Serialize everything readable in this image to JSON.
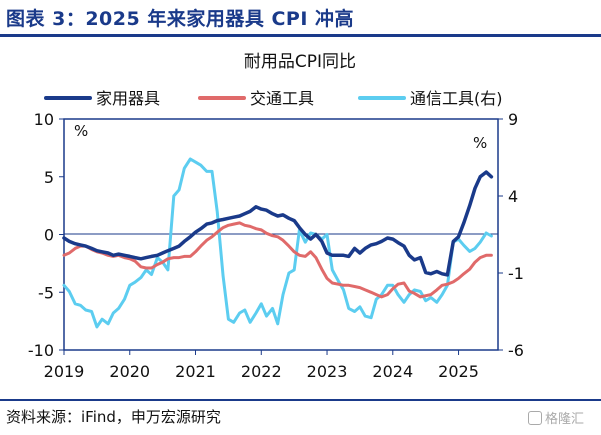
{
  "header": {
    "title": "图表 3：2025 年来家用器具 CPI 冲高"
  },
  "footer": {
    "source": "资料来源：iFind，申万宏源研究",
    "watermark": "格隆汇"
  },
  "colors": {
    "navy": "#1a3a8a",
    "red": "#e06a6a",
    "cyan": "#5ccdf0"
  },
  "chart_data": {
    "type": "line",
    "title": "耐用品CPI同比",
    "left_axis": {
      "unit": "%",
      "ylim": [
        -10,
        10
      ],
      "ticks": [
        "10",
        "5",
        "0",
        "-5",
        "-10"
      ]
    },
    "right_axis": {
      "unit": "%",
      "ylim": [
        -6,
        9
      ],
      "ticks": [
        "9",
        "4",
        "-1",
        "-6"
      ]
    },
    "x_ticks": [
      "2019",
      "2020",
      "2021",
      "2022",
      "2023",
      "2024",
      "2025"
    ],
    "legend": [
      "家用器具",
      "交通工具",
      "通信工具(右)"
    ],
    "series": [
      {
        "name": "家用器具",
        "axis": "left",
        "color": "#1a3a8a",
        "points": [
          [
            2019.0,
            -0.3
          ],
          [
            2019.08,
            -0.6
          ],
          [
            2019.17,
            -0.8
          ],
          [
            2019.25,
            -0.9
          ],
          [
            2019.33,
            -1.0
          ],
          [
            2019.42,
            -1.2
          ],
          [
            2019.5,
            -1.4
          ],
          [
            2019.58,
            -1.5
          ],
          [
            2019.67,
            -1.6
          ],
          [
            2019.75,
            -1.8
          ],
          [
            2019.83,
            -1.7
          ],
          [
            2019.92,
            -1.8
          ],
          [
            2020.0,
            -1.9
          ],
          [
            2020.08,
            -2.0
          ],
          [
            2020.17,
            -2.1
          ],
          [
            2020.25,
            -2.0
          ],
          [
            2020.33,
            -1.9
          ],
          [
            2020.42,
            -1.8
          ],
          [
            2020.5,
            -1.6
          ],
          [
            2020.58,
            -1.4
          ],
          [
            2020.67,
            -1.2
          ],
          [
            2020.75,
            -1.0
          ],
          [
            2020.83,
            -0.6
          ],
          [
            2020.92,
            -0.2
          ],
          [
            2021.0,
            0.2
          ],
          [
            2021.08,
            0.5
          ],
          [
            2021.17,
            0.9
          ],
          [
            2021.25,
            1.0
          ],
          [
            2021.33,
            1.2
          ],
          [
            2021.42,
            1.3
          ],
          [
            2021.5,
            1.4
          ],
          [
            2021.58,
            1.5
          ],
          [
            2021.67,
            1.6
          ],
          [
            2021.75,
            1.8
          ],
          [
            2021.83,
            2.0
          ],
          [
            2021.92,
            2.4
          ],
          [
            2022.0,
            2.2
          ],
          [
            2022.08,
            2.1
          ],
          [
            2022.17,
            1.8
          ],
          [
            2022.25,
            1.6
          ],
          [
            2022.33,
            1.7
          ],
          [
            2022.42,
            1.4
          ],
          [
            2022.5,
            1.2
          ],
          [
            2022.58,
            0.6
          ],
          [
            2022.67,
            0.0
          ],
          [
            2022.75,
            -0.4
          ],
          [
            2022.83,
            0.0
          ],
          [
            2022.92,
            -0.6
          ],
          [
            2023.0,
            -1.6
          ],
          [
            2023.08,
            -1.8
          ],
          [
            2023.17,
            -1.8
          ],
          [
            2023.25,
            -1.8
          ],
          [
            2023.33,
            -1.9
          ],
          [
            2023.42,
            -1.2
          ],
          [
            2023.5,
            -1.6
          ],
          [
            2023.58,
            -1.2
          ],
          [
            2023.67,
            -0.9
          ],
          [
            2023.75,
            -0.8
          ],
          [
            2023.83,
            -0.6
          ],
          [
            2023.92,
            -0.3
          ],
          [
            2024.0,
            -0.4
          ],
          [
            2024.08,
            -0.7
          ],
          [
            2024.17,
            -1.0
          ],
          [
            2024.25,
            -1.8
          ],
          [
            2024.33,
            -2.2
          ],
          [
            2024.42,
            -2.0
          ],
          [
            2024.5,
            -3.3
          ],
          [
            2024.58,
            -3.4
          ],
          [
            2024.67,
            -3.2
          ],
          [
            2024.75,
            -3.4
          ],
          [
            2024.83,
            -3.5
          ],
          [
            2024.92,
            -0.6
          ],
          [
            2025.0,
            -0.2
          ],
          [
            2025.08,
            1.0
          ],
          [
            2025.17,
            2.5
          ],
          [
            2025.25,
            4.0
          ],
          [
            2025.33,
            5.0
          ],
          [
            2025.42,
            5.4
          ],
          [
            2025.5,
            5.0
          ]
        ]
      },
      {
        "name": "交通工具",
        "axis": "left",
        "color": "#e06a6a",
        "points": [
          [
            2019.0,
            -1.8
          ],
          [
            2019.08,
            -1.6
          ],
          [
            2019.17,
            -1.2
          ],
          [
            2019.25,
            -1.0
          ],
          [
            2019.33,
            -1.0
          ],
          [
            2019.42,
            -1.3
          ],
          [
            2019.5,
            -1.5
          ],
          [
            2019.58,
            -1.6
          ],
          [
            2019.67,
            -1.8
          ],
          [
            2019.75,
            -1.9
          ],
          [
            2019.83,
            -1.8
          ],
          [
            2019.92,
            -2.0
          ],
          [
            2020.0,
            -2.1
          ],
          [
            2020.08,
            -2.3
          ],
          [
            2020.17,
            -2.8
          ],
          [
            2020.25,
            -2.9
          ],
          [
            2020.33,
            -2.9
          ],
          [
            2020.42,
            -2.6
          ],
          [
            2020.5,
            -2.4
          ],
          [
            2020.58,
            -2.1
          ],
          [
            2020.67,
            -2.0
          ],
          [
            2020.75,
            -2.0
          ],
          [
            2020.83,
            -1.9
          ],
          [
            2020.92,
            -1.9
          ],
          [
            2021.0,
            -1.5
          ],
          [
            2021.08,
            -1.0
          ],
          [
            2021.17,
            -0.5
          ],
          [
            2021.25,
            -0.2
          ],
          [
            2021.33,
            0.2
          ],
          [
            2021.42,
            0.6
          ],
          [
            2021.5,
            0.8
          ],
          [
            2021.58,
            0.9
          ],
          [
            2021.67,
            1.0
          ],
          [
            2021.75,
            0.8
          ],
          [
            2021.83,
            0.7
          ],
          [
            2021.92,
            0.5
          ],
          [
            2022.0,
            0.4
          ],
          [
            2022.08,
            0.1
          ],
          [
            2022.17,
            -0.1
          ],
          [
            2022.25,
            -0.2
          ],
          [
            2022.33,
            -0.5
          ],
          [
            2022.42,
            -1.0
          ],
          [
            2022.5,
            -1.5
          ],
          [
            2022.58,
            -1.8
          ],
          [
            2022.67,
            -1.9
          ],
          [
            2022.75,
            -1.5
          ],
          [
            2022.83,
            -2.0
          ],
          [
            2022.92,
            -3.0
          ],
          [
            2023.0,
            -3.8
          ],
          [
            2023.08,
            -4.2
          ],
          [
            2023.17,
            -4.3
          ],
          [
            2023.25,
            -4.4
          ],
          [
            2023.33,
            -4.4
          ],
          [
            2023.42,
            -4.5
          ],
          [
            2023.5,
            -4.6
          ],
          [
            2023.58,
            -4.8
          ],
          [
            2023.67,
            -5.0
          ],
          [
            2023.75,
            -5.2
          ],
          [
            2023.83,
            -5.4
          ],
          [
            2023.92,
            -5.2
          ],
          [
            2024.0,
            -4.7
          ],
          [
            2024.08,
            -4.3
          ],
          [
            2024.17,
            -4.2
          ],
          [
            2024.25,
            -4.9
          ],
          [
            2024.33,
            -5.1
          ],
          [
            2024.42,
            -5.4
          ],
          [
            2024.5,
            -5.3
          ],
          [
            2024.58,
            -5.2
          ],
          [
            2024.67,
            -4.8
          ],
          [
            2024.75,
            -4.4
          ],
          [
            2024.83,
            -4.3
          ],
          [
            2024.92,
            -4.1
          ],
          [
            2025.0,
            -3.8
          ],
          [
            2025.08,
            -3.4
          ],
          [
            2025.17,
            -3.0
          ],
          [
            2025.25,
            -2.4
          ],
          [
            2025.33,
            -2.0
          ],
          [
            2025.42,
            -1.8
          ],
          [
            2025.5,
            -1.8
          ]
        ]
      },
      {
        "name": "通信工具(右)",
        "axis": "right",
        "color": "#5ccdf0",
        "points": [
          [
            2019.0,
            -1.8
          ],
          [
            2019.08,
            -2.2
          ],
          [
            2019.17,
            -3.0
          ],
          [
            2019.25,
            -3.1
          ],
          [
            2019.33,
            -3.4
          ],
          [
            2019.42,
            -3.5
          ],
          [
            2019.5,
            -4.5
          ],
          [
            2019.58,
            -4.0
          ],
          [
            2019.67,
            -4.3
          ],
          [
            2019.75,
            -3.6
          ],
          [
            2019.83,
            -3.3
          ],
          [
            2019.92,
            -2.7
          ],
          [
            2020.0,
            -1.8
          ],
          [
            2020.08,
            -1.6
          ],
          [
            2020.17,
            -1.3
          ],
          [
            2020.25,
            -0.8
          ],
          [
            2020.33,
            -1.1
          ],
          [
            2020.42,
            0.0
          ],
          [
            2020.5,
            -0.3
          ],
          [
            2020.58,
            -0.8
          ],
          [
            2020.67,
            4.0
          ],
          [
            2020.75,
            4.4
          ],
          [
            2020.83,
            5.8
          ],
          [
            2020.92,
            6.4
          ],
          [
            2021.0,
            6.2
          ],
          [
            2021.08,
            6.0
          ],
          [
            2021.17,
            5.6
          ],
          [
            2021.25,
            5.6
          ],
          [
            2021.33,
            3.0
          ],
          [
            2021.42,
            -1.2
          ],
          [
            2021.5,
            -4.0
          ],
          [
            2021.58,
            -4.2
          ],
          [
            2021.67,
            -3.6
          ],
          [
            2021.75,
            -3.4
          ],
          [
            2021.83,
            -4.2
          ],
          [
            2021.92,
            -3.6
          ],
          [
            2022.0,
            -3.0
          ],
          [
            2022.08,
            -3.8
          ],
          [
            2022.17,
            -3.3
          ],
          [
            2022.25,
            -4.3
          ],
          [
            2022.33,
            -2.4
          ],
          [
            2022.42,
            -1.0
          ],
          [
            2022.5,
            -0.8
          ],
          [
            2022.58,
            1.8
          ],
          [
            2022.67,
            1.0
          ],
          [
            2022.75,
            1.6
          ],
          [
            2022.83,
            1.5
          ],
          [
            2022.92,
            1.2
          ],
          [
            2023.0,
            1.5
          ],
          [
            2023.08,
            -0.8
          ],
          [
            2023.17,
            -1.5
          ],
          [
            2023.25,
            -2.1
          ],
          [
            2023.33,
            -3.3
          ],
          [
            2023.42,
            -3.5
          ],
          [
            2023.5,
            -3.2
          ],
          [
            2023.58,
            -3.8
          ],
          [
            2023.67,
            -3.9
          ],
          [
            2023.75,
            -2.7
          ],
          [
            2023.83,
            -2.4
          ],
          [
            2023.92,
            -1.8
          ],
          [
            2024.0,
            -1.8
          ],
          [
            2024.08,
            -2.4
          ],
          [
            2024.17,
            -2.9
          ],
          [
            2024.25,
            -2.4
          ],
          [
            2024.33,
            -2.1
          ],
          [
            2024.42,
            -2.2
          ],
          [
            2024.5,
            -2.8
          ],
          [
            2024.58,
            -2.6
          ],
          [
            2024.67,
            -2.9
          ],
          [
            2024.75,
            -2.4
          ],
          [
            2024.83,
            -1.8
          ],
          [
            2024.92,
            1.0
          ],
          [
            2025.0,
            1.2
          ],
          [
            2025.08,
            0.8
          ],
          [
            2025.17,
            0.4
          ],
          [
            2025.25,
            0.6
          ],
          [
            2025.33,
            1.0
          ],
          [
            2025.42,
            1.6
          ],
          [
            2025.5,
            1.4
          ]
        ]
      }
    ]
  }
}
